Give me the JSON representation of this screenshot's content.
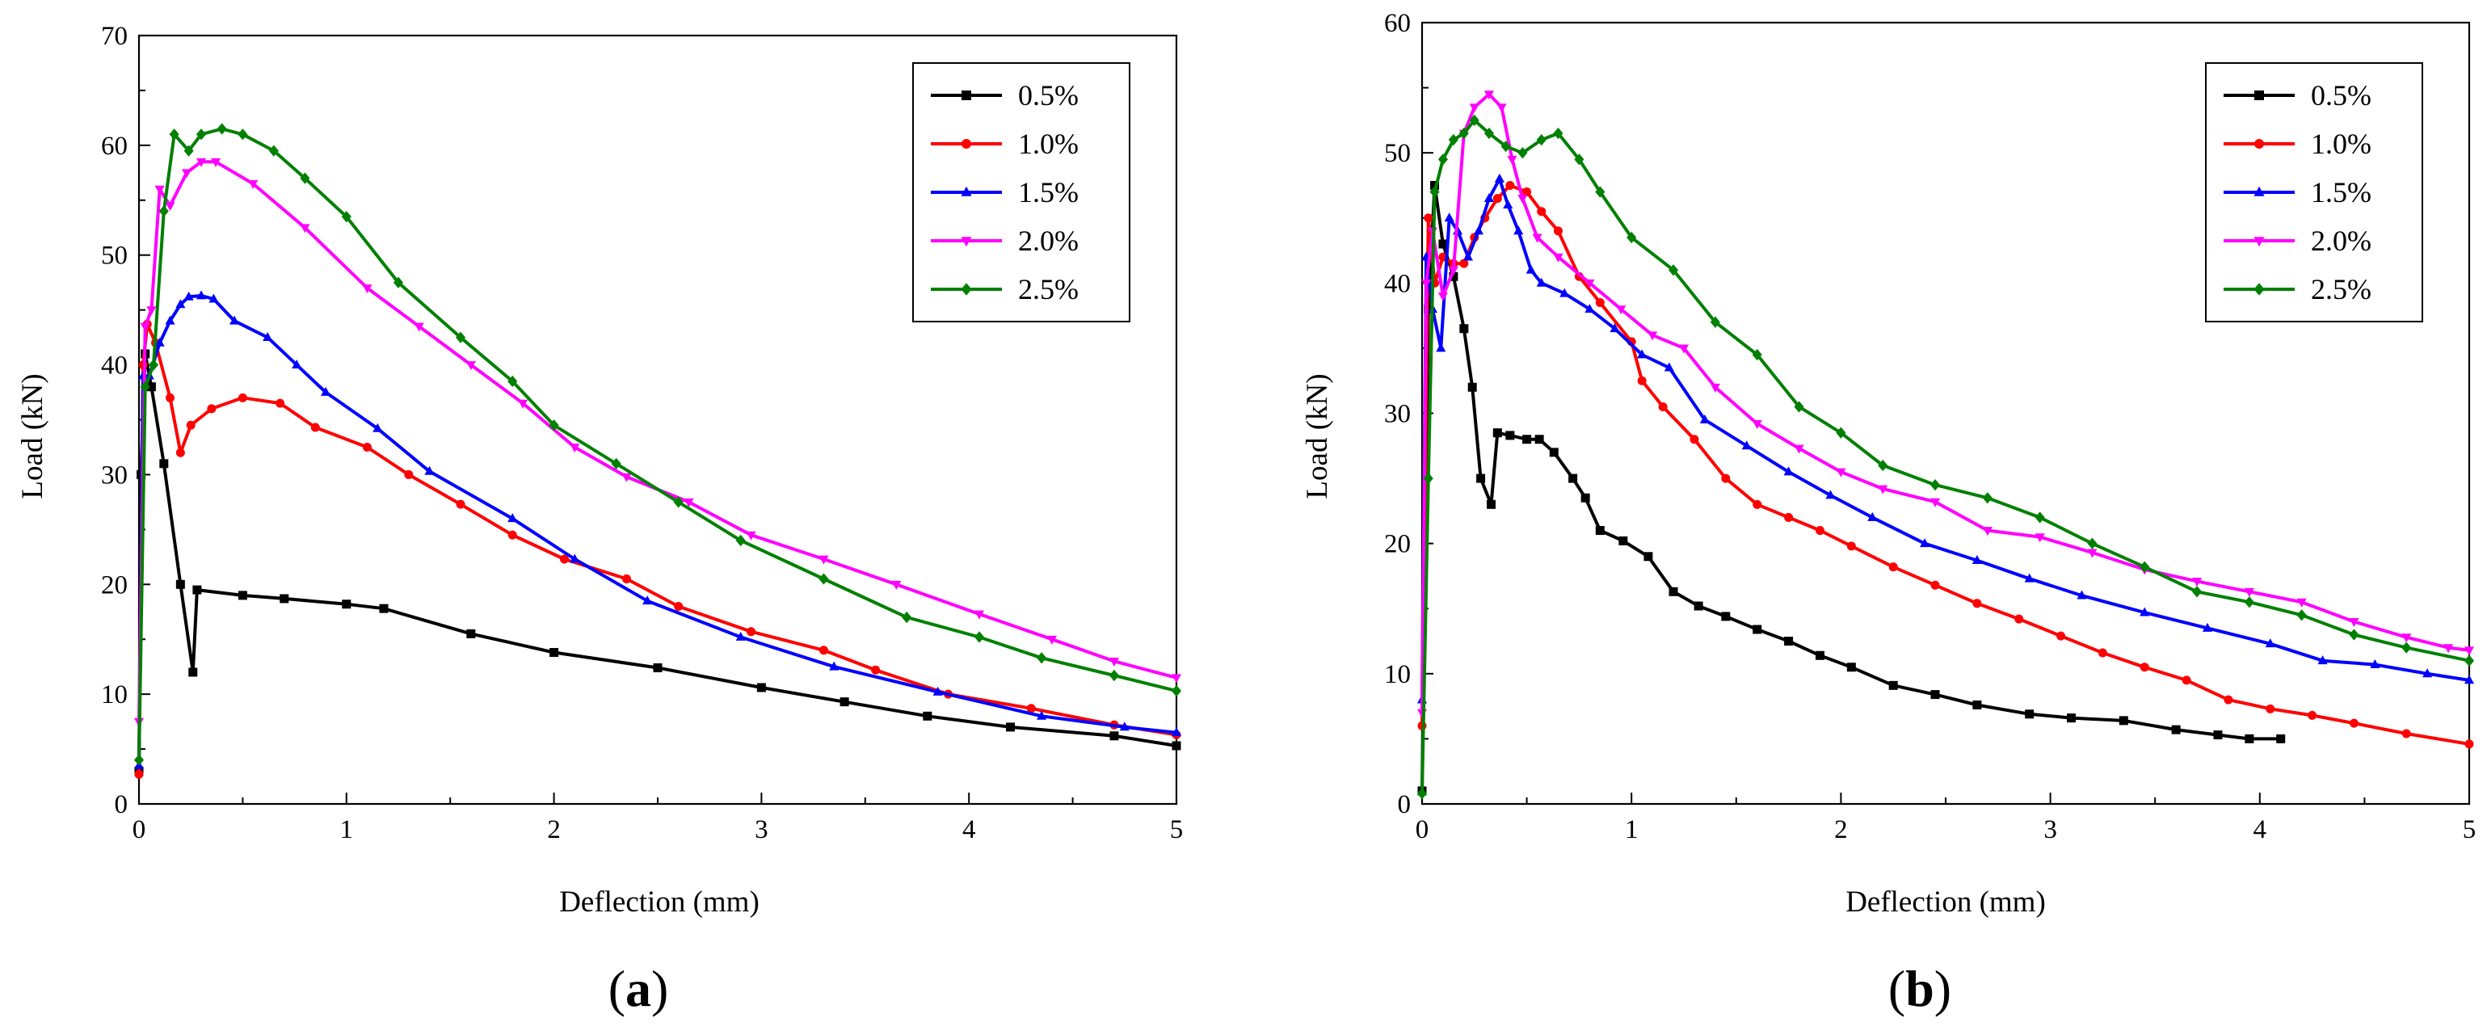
{
  "chart_data": [
    {
      "type": "line",
      "panel_label": "a",
      "panel_caption": [
        "(",
        "a",
        ")"
      ],
      "xlabel": "Deflection (mm)",
      "ylabel": "Load (kN)",
      "xlim": [
        0,
        5
      ],
      "ylim": [
        0,
        70
      ],
      "xticks": [
        0,
        1,
        2,
        3,
        4,
        5
      ],
      "yticks": [
        0,
        10,
        20,
        30,
        40,
        50,
        60,
        70
      ],
      "legend_position": "top-right",
      "series": [
        {
          "name": "0.5%",
          "color": "#000000",
          "marker": "square",
          "x": [
            0,
            0.01,
            0.03,
            0.06,
            0.12,
            0.2,
            0.26,
            0.28,
            0.5,
            0.7,
            1.0,
            1.18,
            1.6,
            2.0,
            2.5,
            3.0,
            3.4,
            3.8,
            4.2,
            4.7,
            5.0
          ],
          "y": [
            3,
            30,
            41,
            38,
            31,
            20,
            12,
            19.5,
            19,
            18.7,
            18.2,
            17.8,
            15.5,
            13.8,
            12.4,
            10.6,
            9.3,
            8,
            7,
            6.2,
            5.3
          ]
        },
        {
          "name": "1.0%",
          "color": "#ff0000",
          "marker": "circle",
          "x": [
            0,
            0.02,
            0.04,
            0.08,
            0.15,
            0.2,
            0.25,
            0.35,
            0.5,
            0.68,
            0.85,
            1.1,
            1.3,
            1.55,
            1.8,
            2.05,
            2.35,
            2.6,
            2.95,
            3.3,
            3.55,
            3.9,
            4.3,
            4.7,
            5.0
          ],
          "y": [
            2.7,
            40,
            43.7,
            42,
            37,
            32,
            34.5,
            36,
            37,
            36.5,
            34.3,
            32.5,
            30,
            27.3,
            24.5,
            22.3,
            20.5,
            18,
            15.7,
            14,
            12.2,
            10,
            8.7,
            7.2,
            6.3
          ]
        },
        {
          "name": "1.5%",
          "color": "#0000ff",
          "marker": "triangle-up",
          "x": [
            0,
            0.02,
            0.05,
            0.1,
            0.15,
            0.2,
            0.24,
            0.3,
            0.36,
            0.46,
            0.62,
            0.76,
            0.9,
            1.15,
            1.4,
            1.8,
            2.1,
            2.45,
            2.9,
            3.35,
            3.85,
            4.35,
            4.75,
            5.0
          ],
          "y": [
            3.5,
            39,
            39,
            42,
            44,
            45.5,
            46.2,
            46.3,
            46,
            44,
            42.5,
            40,
            37.5,
            34.2,
            30.3,
            26,
            22.3,
            18.5,
            15.2,
            12.5,
            10.2,
            8,
            7,
            6.5
          ]
        },
        {
          "name": "2.0%",
          "color": "#ff00ff",
          "marker": "triangle-down",
          "x": [
            0,
            0.03,
            0.06,
            0.1,
            0.15,
            0.23,
            0.3,
            0.37,
            0.55,
            0.8,
            1.1,
            1.35,
            1.6,
            1.85,
            2.1,
            2.35,
            2.65,
            2.95,
            3.3,
            3.65,
            4.05,
            4.4,
            4.7,
            5.0
          ],
          "y": [
            7.5,
            43.5,
            45,
            56,
            54.5,
            57.5,
            58.5,
            58.5,
            56.5,
            52.5,
            47,
            43.5,
            40,
            36.5,
            32.5,
            29.8,
            27.5,
            24.5,
            22.3,
            20,
            17.3,
            15,
            13,
            11.5
          ]
        },
        {
          "name": "2.5%",
          "color": "#008000",
          "marker": "diamond",
          "x": [
            0,
            0.03,
            0.07,
            0.12,
            0.17,
            0.24,
            0.3,
            0.4,
            0.5,
            0.65,
            0.8,
            1.0,
            1.25,
            1.55,
            1.8,
            2.0,
            2.3,
            2.6,
            2.9,
            3.3,
            3.7,
            4.05,
            4.35,
            4.7,
            5.0
          ],
          "y": [
            4,
            38,
            40,
            54,
            61,
            59.5,
            61,
            61.5,
            61,
            59.5,
            57,
            53.5,
            47.5,
            42.5,
            38.5,
            34.5,
            31,
            27.5,
            24,
            20.5,
            17,
            15.2,
            13.3,
            11.7,
            10.3
          ]
        }
      ]
    },
    {
      "type": "line",
      "panel_label": "b",
      "panel_caption": [
        "(",
        "b",
        ")"
      ],
      "xlabel": "Deflection (mm)",
      "ylabel": "Load (kN)",
      "xlim": [
        0,
        5
      ],
      "ylim": [
        0,
        60
      ],
      "xticks": [
        0,
        1,
        2,
        3,
        4,
        5
      ],
      "yticks": [
        0,
        10,
        20,
        30,
        40,
        50,
        60
      ],
      "legend_position": "top-right",
      "series": [
        {
          "name": "0.5%",
          "color": "#000000",
          "marker": "square",
          "x": [
            0,
            0.03,
            0.06,
            0.1,
            0.15,
            0.2,
            0.24,
            0.28,
            0.33,
            0.36,
            0.42,
            0.5,
            0.56,
            0.63,
            0.72,
            0.78,
            0.85,
            0.96,
            1.08,
            1.2,
            1.32,
            1.45,
            1.6,
            1.75,
            1.9,
            2.05,
            2.25,
            2.45,
            2.65,
            2.9,
            3.1,
            3.35,
            3.6,
            3.8,
            3.95,
            4.1
          ],
          "y": [
            1,
            38,
            47.5,
            43,
            40.5,
            36.5,
            32,
            25,
            23,
            28.5,
            28.3,
            28,
            28,
            27,
            25,
            23.5,
            21,
            20.2,
            19,
            16.3,
            15.2,
            14.4,
            13.4,
            12.5,
            11.4,
            10.5,
            9.1,
            8.4,
            7.6,
            6.9,
            6.6,
            6.4,
            5.7,
            5.3,
            5,
            5
          ]
        },
        {
          "name": "1.0%",
          "color": "#ff0000",
          "marker": "circle",
          "x": [
            0,
            0.03,
            0.06,
            0.1,
            0.15,
            0.2,
            0.25,
            0.3,
            0.36,
            0.42,
            0.5,
            0.57,
            0.65,
            0.75,
            0.85,
            1.0,
            1.05,
            1.15,
            1.3,
            1.45,
            1.6,
            1.75,
            1.9,
            2.05,
            2.25,
            2.45,
            2.65,
            2.85,
            3.05,
            3.25,
            3.45,
            3.65,
            3.85,
            4.05,
            4.25,
            4.45,
            4.7,
            5.0
          ],
          "y": [
            6,
            45,
            40,
            42,
            41.5,
            41.5,
            43.5,
            45,
            46.5,
            47.5,
            47,
            45.5,
            44,
            40.5,
            38.5,
            35.5,
            32.5,
            30.5,
            28,
            25,
            23,
            22,
            21,
            19.8,
            18.2,
            16.8,
            15.4,
            14.2,
            12.9,
            11.6,
            10.5,
            9.5,
            8,
            7.3,
            6.8,
            6.2,
            5.4,
            4.6
          ]
        },
        {
          "name": "1.5%",
          "color": "#0000ff",
          "marker": "triangle-up",
          "x": [
            0,
            0.02,
            0.05,
            0.09,
            0.13,
            0.17,
            0.22,
            0.27,
            0.32,
            0.37,
            0.41,
            0.46,
            0.52,
            0.57,
            0.68,
            0.8,
            0.92,
            1.05,
            1.18,
            1.35,
            1.55,
            1.75,
            1.95,
            2.15,
            2.4,
            2.65,
            2.9,
            3.15,
            3.45,
            3.75,
            4.05,
            4.3,
            4.55,
            4.8,
            5.0
          ],
          "y": [
            8,
            42,
            38,
            35,
            45,
            44,
            42,
            44,
            46.5,
            48,
            46,
            44,
            41,
            40,
            39.2,
            38,
            36.5,
            34.5,
            33.5,
            29.5,
            27.5,
            25.5,
            23.7,
            22,
            20,
            18.7,
            17.3,
            16,
            14.7,
            13.5,
            12.3,
            11,
            10.7,
            10,
            9.5
          ]
        },
        {
          "name": "2.0%",
          "color": "#ff00ff",
          "marker": "triangle-down",
          "x": [
            0,
            0.02,
            0.05,
            0.1,
            0.15,
            0.2,
            0.25,
            0.32,
            0.38,
            0.43,
            0.48,
            0.55,
            0.65,
            0.8,
            0.95,
            1.1,
            1.25,
            1.4,
            1.6,
            1.8,
            2.0,
            2.2,
            2.45,
            2.7,
            2.95,
            3.2,
            3.45,
            3.7,
            3.95,
            4.2,
            4.45,
            4.7,
            4.9,
            5.0
          ],
          "y": [
            7,
            40,
            44,
            39,
            41,
            51.5,
            53.5,
            54.5,
            53.5,
            49.5,
            46.5,
            43.5,
            42,
            40,
            38,
            36,
            35,
            32,
            29.2,
            27.3,
            25.5,
            24.2,
            23.2,
            21,
            20.5,
            19.3,
            18,
            17.1,
            16.3,
            15.5,
            14,
            12.8,
            12,
            11.8
          ]
        },
        {
          "name": "2.5%",
          "color": "#008000",
          "marker": "diamond",
          "x": [
            0,
            0.03,
            0.06,
            0.1,
            0.15,
            0.2,
            0.25,
            0.32,
            0.4,
            0.48,
            0.57,
            0.65,
            0.75,
            0.85,
            1.0,
            1.2,
            1.4,
            1.6,
            1.8,
            2.0,
            2.2,
            2.45,
            2.7,
            2.95,
            3.2,
            3.45,
            3.7,
            3.95,
            4.2,
            4.45,
            4.7,
            5.0
          ],
          "y": [
            0.8,
            25,
            47,
            49.5,
            51,
            51.5,
            52.5,
            51.5,
            50.5,
            50,
            51,
            51.5,
            49.5,
            47,
            43.5,
            41,
            37,
            34.5,
            30.5,
            28.5,
            26,
            24.5,
            23.5,
            22,
            20,
            18.2,
            16.3,
            15.5,
            14.5,
            13,
            12,
            11
          ]
        }
      ]
    }
  ]
}
